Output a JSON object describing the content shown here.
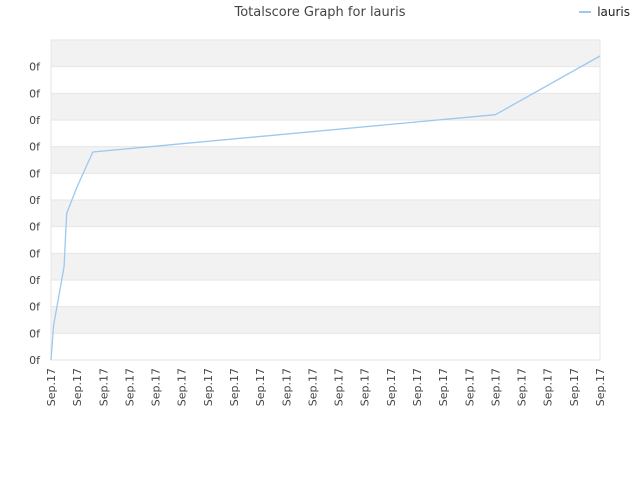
{
  "chart_data": {
    "type": "line",
    "title": "Totalscore Graph for lauris",
    "xlabel": "",
    "ylabel": "",
    "grid": true,
    "legend_position": "top-right",
    "y_tick_labels": [
      "0f",
      "0f",
      "0f",
      "0f",
      "0f",
      "0f",
      "0f",
      "0f",
      "0f",
      "0f",
      "0f",
      "0f"
    ],
    "x_tick_labels": [
      "Sep.17",
      "Sep.17",
      "Sep.17",
      "Sep.17",
      "Sep.17",
      "Sep.17",
      "Sep.17",
      "Sep.17",
      "Sep.17",
      "Sep.17",
      "Sep.17",
      "Sep.17",
      "Sep.17",
      "Sep.17",
      "Sep.17",
      "Sep.17",
      "Sep.17",
      "Sep.17",
      "Sep.17",
      "Sep.17",
      "Sep.17",
      "Sep.17"
    ],
    "series": [
      {
        "name": "lauris",
        "color": "#9cc8f0",
        "x": [
          0,
          0.1,
          0.5,
          0.6,
          0.8,
          1.0,
          1.6,
          17.0,
          21.0
        ],
        "y": [
          0,
          1.3,
          3.5,
          5.5,
          6.0,
          6.5,
          7.8,
          9.2,
          11.4
        ]
      }
    ],
    "xlim": [
      0,
      21
    ],
    "ylim": [
      0,
      12
    ]
  },
  "colors": {
    "band": "#f2f2f2",
    "grid": "#e6e6e6",
    "line": "#9cc8f0"
  }
}
